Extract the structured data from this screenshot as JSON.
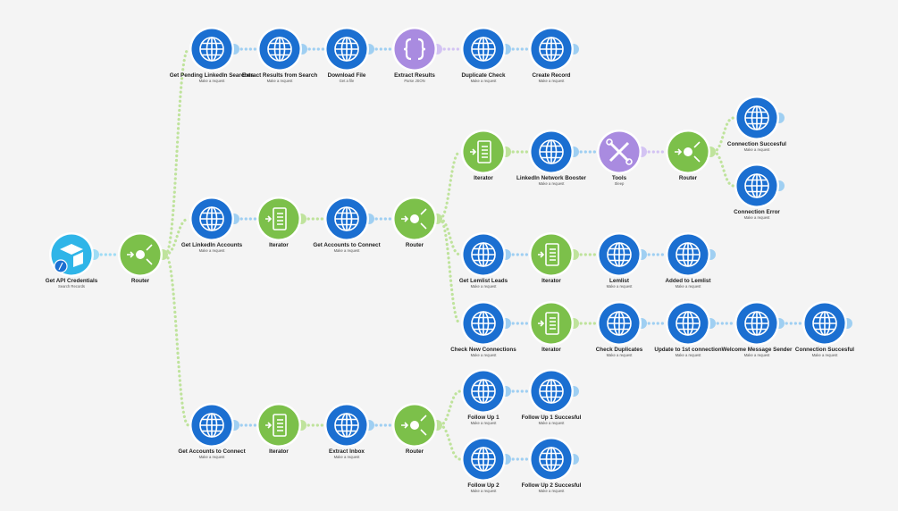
{
  "nodes": [
    {
      "label": "Get API Credentials",
      "sublabel": "Search Records"
    },
    {
      "label": "Router"
    },
    {
      "label": "Get Pending LinkedIn Searches",
      "sublabel": "Make a request"
    },
    {
      "label": "Extract Results from Search",
      "sublabel": "Make a request"
    },
    {
      "label": "Download File",
      "sublabel": "Get a file"
    },
    {
      "label": "Extract Results",
      "sublabel": "Parse JSON"
    },
    {
      "label": "Duplicate Check",
      "sublabel": "Make a request"
    },
    {
      "label": "Create Record",
      "sublabel": "Make a request"
    },
    {
      "label": "Get LinkedIn Accounts",
      "sublabel": "Make a request"
    },
    {
      "label": "Iterator"
    },
    {
      "label": "Get Accounts to Connect",
      "sublabel": "Make a request"
    },
    {
      "label": "Router"
    },
    {
      "label": "Iterator"
    },
    {
      "label": "LinkedIn Network Booster",
      "sublabel": "Make a request"
    },
    {
      "label": "Tools",
      "sublabel": "Sleep"
    },
    {
      "label": "Router"
    },
    {
      "label": "Connection Succesful",
      "sublabel": "Make a request"
    },
    {
      "label": "Connection Error",
      "sublabel": "Make a request"
    },
    {
      "label": "Get Lemlist Leads",
      "sublabel": "Make a request"
    },
    {
      "label": "Iterator"
    },
    {
      "label": "Lemlist",
      "sublabel": "Make a request"
    },
    {
      "label": "Added to Lemlist",
      "sublabel": "Make a request"
    },
    {
      "label": "Check New Connections",
      "sublabel": "Make a request"
    },
    {
      "label": "Iterator"
    },
    {
      "label": "Check Duplicates",
      "sublabel": "Make a request"
    },
    {
      "label": "Update to 1st connection",
      "sublabel": "Make a request"
    },
    {
      "label": "Welcome Message Sender",
      "sublabel": "Make a request"
    },
    {
      "label": "Connection Succesful",
      "sublabel": "Make a request"
    },
    {
      "label": "Get Accounts to Connect",
      "sublabel": "Make a request"
    },
    {
      "label": "Iterator"
    },
    {
      "label": "Extract Inbox",
      "sublabel": "Make a request"
    },
    {
      "label": "Router"
    },
    {
      "label": "Follow Up 1",
      "sublabel": "Make a request"
    },
    {
      "label": "Follow Up 1 Succesful",
      "sublabel": "Make a request"
    },
    {
      "label": "Follow Up 2",
      "sublabel": "Make a request"
    },
    {
      "label": "Follow Up 2 Succesful",
      "sublabel": "Make a request"
    }
  ]
}
